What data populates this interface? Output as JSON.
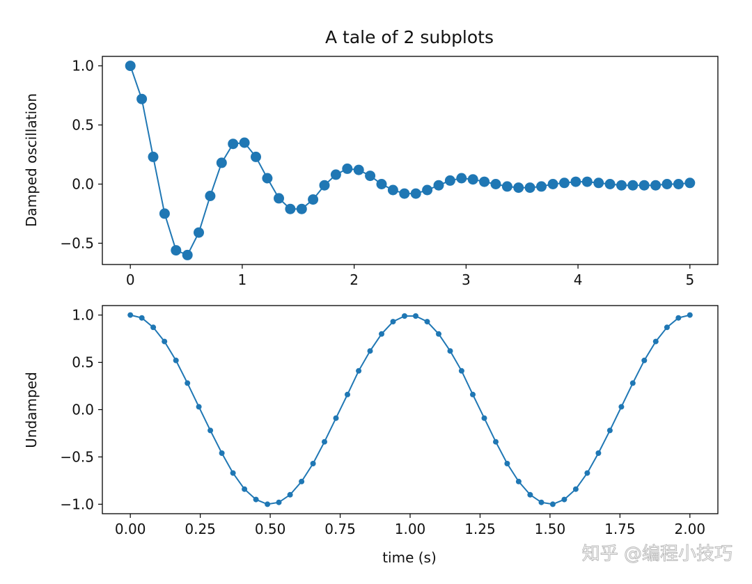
{
  "figure": {
    "title": "A tale of 2 subplots",
    "watermark": "知乎 @编程小技巧"
  },
  "chart_data": [
    {
      "type": "line",
      "marker": "circle",
      "color": "#1f77b4",
      "title": "A tale of 2 subplots",
      "xlabel": "",
      "ylabel": "Damped oscillation",
      "xlim": [
        -0.25,
        5.25
      ],
      "ylim": [
        -0.68,
        1.08
      ],
      "xticks": [
        0,
        1,
        2,
        3,
        4,
        5
      ],
      "xtick_labels": [
        "0",
        "1",
        "2",
        "3",
        "4",
        "5"
      ],
      "yticks": [
        1.0,
        0.5,
        0.0,
        -0.5
      ],
      "ytick_labels": [
        "1.0",
        "0.5",
        "0.0",
        "−0.5"
      ],
      "grid": false,
      "series": [
        {
          "x": [
            0.0,
            0.102,
            0.204,
            0.306,
            0.408,
            0.51,
            0.612,
            0.714,
            0.816,
            0.918,
            1.02,
            1.122,
            1.224,
            1.327,
            1.429,
            1.531,
            1.633,
            1.735,
            1.837,
            1.939,
            2.041,
            2.143,
            2.245,
            2.347,
            2.449,
            2.551,
            2.653,
            2.755,
            2.857,
            2.959,
            3.061,
            3.163,
            3.265,
            3.367,
            3.469,
            3.571,
            3.673,
            3.776,
            3.878,
            3.98,
            4.082,
            4.184,
            4.286,
            4.388,
            4.49,
            4.592,
            4.694,
            4.796,
            4.898,
            5.0
          ],
          "y": [
            1.0,
            0.72,
            0.23,
            -0.25,
            -0.56,
            -0.6,
            -0.41,
            -0.1,
            0.18,
            0.34,
            0.35,
            0.23,
            0.05,
            -0.12,
            -0.21,
            -0.21,
            -0.13,
            -0.01,
            0.08,
            0.13,
            0.12,
            0.07,
            0.0,
            -0.05,
            -0.08,
            -0.08,
            -0.05,
            -0.01,
            0.03,
            0.05,
            0.04,
            0.02,
            0.0,
            -0.02,
            -0.03,
            -0.03,
            -0.02,
            0.0,
            0.01,
            0.02,
            0.02,
            0.01,
            0.0,
            -0.01,
            -0.01,
            -0.01,
            -0.01,
            0.0,
            0.0,
            0.01
          ]
        }
      ]
    },
    {
      "type": "line",
      "marker": "point",
      "color": "#1f77b4",
      "title": "",
      "xlabel": "time (s)",
      "ylabel": "Undamped",
      "xlim": [
        -0.1,
        2.1
      ],
      "ylim": [
        -1.1,
        1.1
      ],
      "xticks": [
        0.0,
        0.25,
        0.5,
        0.75,
        1.0,
        1.25,
        1.5,
        1.75,
        2.0
      ],
      "xtick_labels": [
        "0.00",
        "0.25",
        "0.50",
        "0.75",
        "1.00",
        "1.25",
        "1.50",
        "1.75",
        "2.00"
      ],
      "yticks": [
        1.0,
        0.5,
        0.0,
        -0.5,
        -1.0
      ],
      "ytick_labels": [
        "1.0",
        "0.5",
        "0.0",
        "−0.5",
        "−1.0"
      ],
      "grid": false,
      "series": [
        {
          "x": [
            0.0,
            0.041,
            0.082,
            0.122,
            0.163,
            0.204,
            0.245,
            0.286,
            0.327,
            0.367,
            0.408,
            0.449,
            0.49,
            0.531,
            0.571,
            0.612,
            0.653,
            0.694,
            0.735,
            0.776,
            0.816,
            0.857,
            0.898,
            0.939,
            0.98,
            1.02,
            1.061,
            1.102,
            1.143,
            1.184,
            1.224,
            1.265,
            1.306,
            1.347,
            1.388,
            1.429,
            1.469,
            1.51,
            1.551,
            1.592,
            1.633,
            1.673,
            1.714,
            1.755,
            1.796,
            1.837,
            1.878,
            1.918,
            1.959,
            2.0
          ],
          "y": [
            1.0,
            0.97,
            0.87,
            0.72,
            0.52,
            0.28,
            0.03,
            -0.22,
            -0.46,
            -0.67,
            -0.84,
            -0.95,
            -1.0,
            -0.98,
            -0.9,
            -0.76,
            -0.57,
            -0.34,
            -0.09,
            0.16,
            0.41,
            0.62,
            0.8,
            0.93,
            0.99,
            0.99,
            0.93,
            0.8,
            0.62,
            0.41,
            0.16,
            -0.09,
            -0.34,
            -0.57,
            -0.76,
            -0.9,
            -0.98,
            -1.0,
            -0.95,
            -0.84,
            -0.67,
            -0.46,
            -0.22,
            0.03,
            0.28,
            0.52,
            0.72,
            0.87,
            0.97,
            1.0
          ]
        }
      ]
    }
  ]
}
